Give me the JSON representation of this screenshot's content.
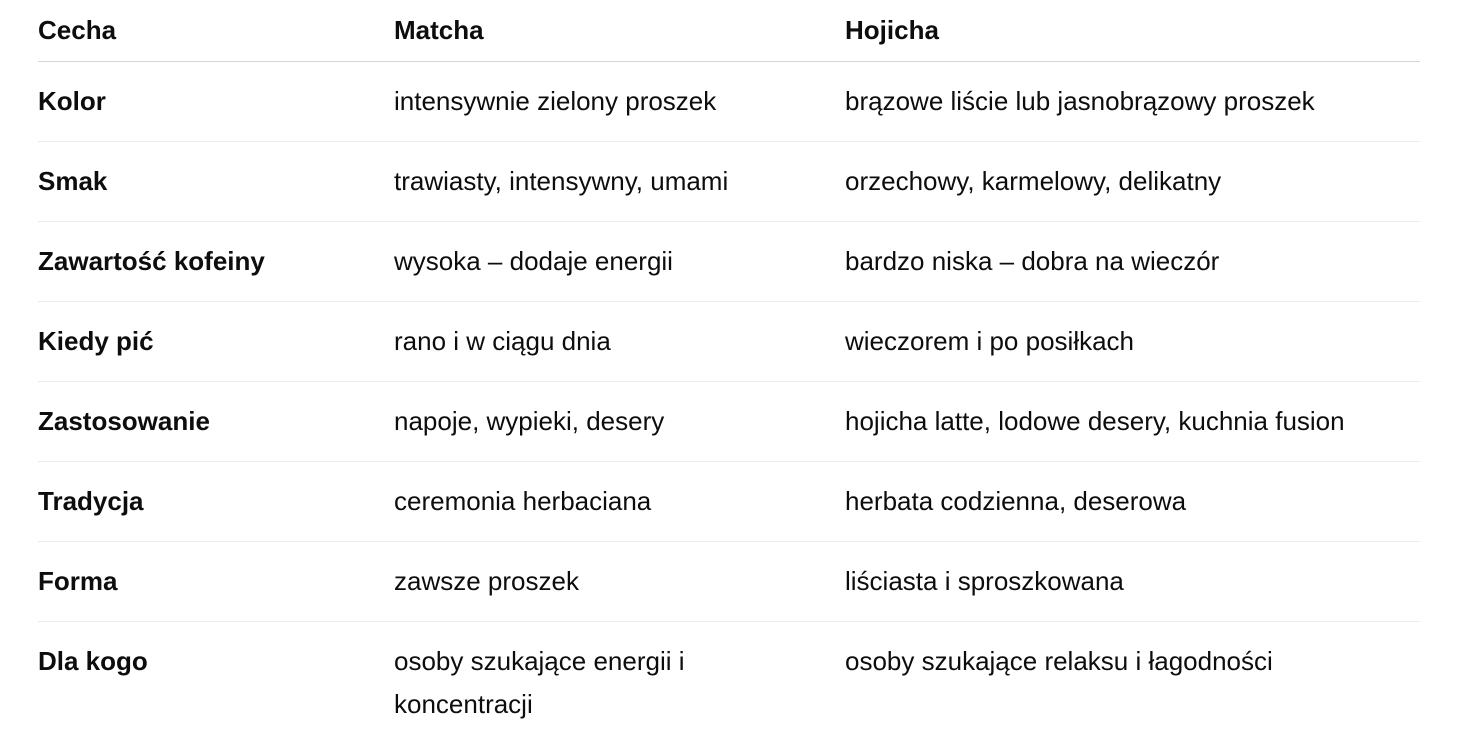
{
  "table": {
    "header": {
      "feature": "Cecha",
      "matcha": "Matcha",
      "hojicha": "Hojicha"
    },
    "rows": [
      {
        "feature": "Kolor",
        "matcha": "intensywnie zielony proszek",
        "hojicha": "brązowe liście lub jasnobrązowy proszek"
      },
      {
        "feature": "Smak",
        "matcha": "trawiasty, intensywny, umami",
        "hojicha": "orzechowy, karmelowy, delikatny"
      },
      {
        "feature": "Zawartość kofeiny",
        "matcha": "wysoka – dodaje energii",
        "hojicha": "bardzo niska – dobra na wieczór"
      },
      {
        "feature": "Kiedy pić",
        "matcha": "rano i w ciągu dnia",
        "hojicha": "wieczorem i po posiłkach"
      },
      {
        "feature": "Zastosowanie",
        "matcha": "napoje, wypieki, desery",
        "hojicha": "hojicha latte, lodowe desery, kuchnia fusion"
      },
      {
        "feature": "Tradycja",
        "matcha": "ceremonia herbaciana",
        "hojicha": "herbata codzienna, deserowa"
      },
      {
        "feature": "Forma",
        "matcha": "zawsze proszek",
        "hojicha": "liściasta i sproszkowana"
      },
      {
        "feature": "Dla kogo",
        "matcha": "osoby szukające energii i koncentracji",
        "hojicha": "osoby szukające relaksu i łagodności"
      }
    ]
  },
  "colors": {
    "background": "#ffffff",
    "text": "#0d0d0d",
    "header_divider": "#d5d5d5",
    "row_divider": "#ececec"
  }
}
